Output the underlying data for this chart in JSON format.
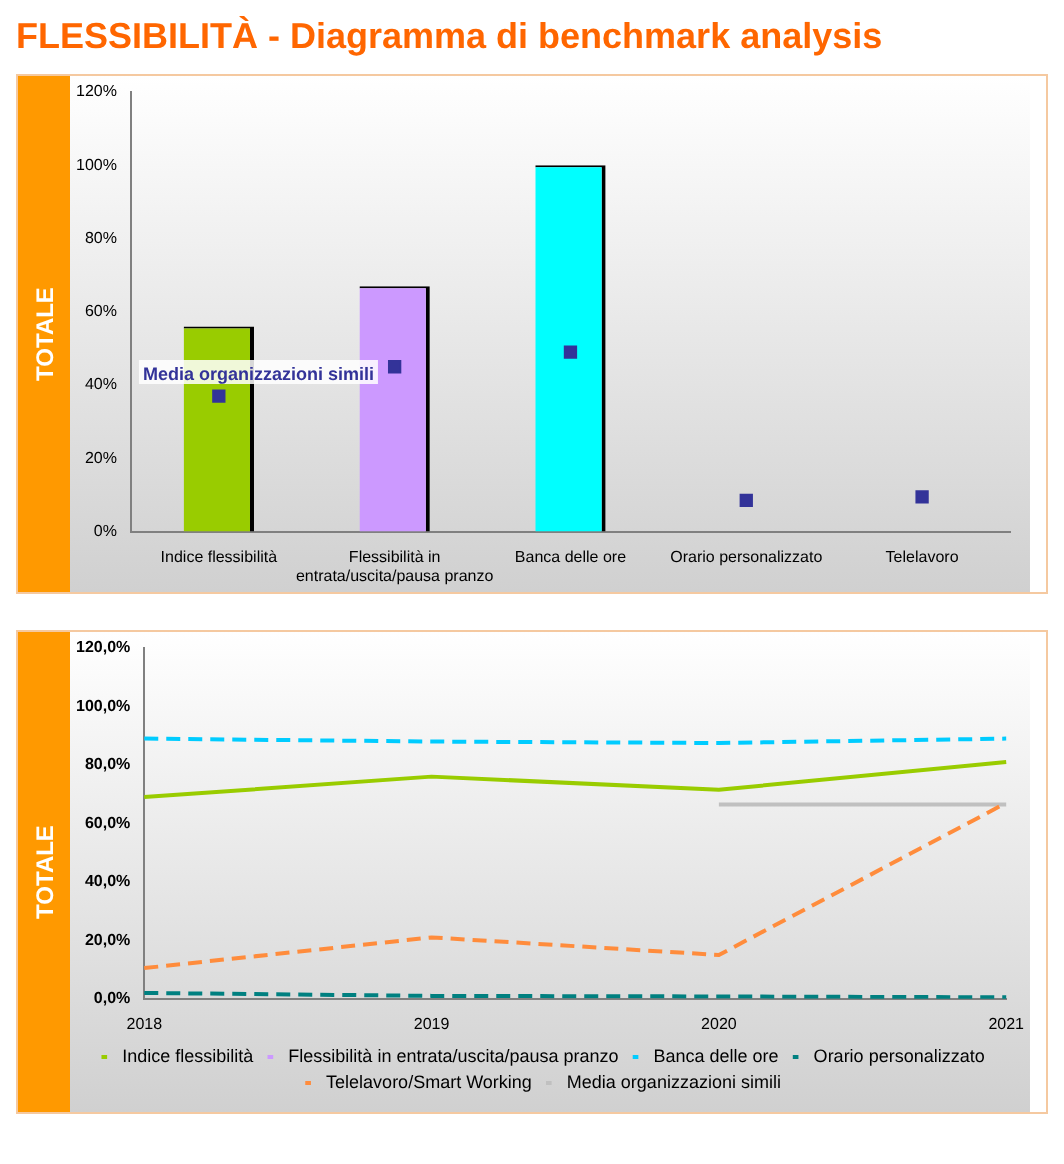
{
  "chart_data": [
    {
      "type": "bar",
      "title": "FLESSIBILITÀ - Diagramma di benchmark analysis",
      "ylabel": "TOTALE",
      "categories": [
        "Indice flessibilità",
        "Flessibilità in entrata/uscita/pausa pranzo",
        "Banca delle ore",
        "Orario personalizzato",
        "Telelavoro"
      ],
      "series": [
        {
          "colors": [
            "#99cc00",
            "#cc99ff",
            "#00ffff",
            "#99cc00",
            "#99cc00"
          ],
          "values": [
            56,
            67,
            100,
            0,
            0
          ]
        },
        {
          "type": "scatter",
          "name": "Media organizzazioni simili",
          "color": "#333399",
          "x": [
            "Indice flessibilità",
            "Flessibilità in entrata/uscita/pausa pranzo",
            "Banca delle ore",
            "Orario personalizzato",
            "Telelavoro"
          ],
          "values": [
            37,
            45,
            49,
            8.5,
            9.5
          ]
        }
      ],
      "ylim": [
        0,
        120
      ],
      "yticks": [
        {
          "value": 0,
          "label": "0%"
        },
        {
          "value": 20,
          "label": "20%"
        },
        {
          "value": 40,
          "label": "40%"
        },
        {
          "value": 60,
          "label": "60%"
        },
        {
          "value": 80,
          "label": "80%"
        },
        {
          "value": 100,
          "label": "100%"
        },
        {
          "value": 120,
          "label": "120%"
        }
      ]
    },
    {
      "type": "line",
      "ylabel": "TOTALE",
      "categories": [
        "2018",
        "2019",
        "2020",
        "2021"
      ],
      "series": [
        {
          "name": "Indice flessibilità",
          "color": "#99cc00",
          "line_style": "solid",
          "values": [
            69,
            76,
            71.5,
            81
          ]
        },
        {
          "name": "Flessibilità in entrata/uscita/pausa pranzo",
          "color": "#cc99ff",
          "line_style": "dashed",
          "values": [
            null,
            null,
            null,
            null
          ]
        },
        {
          "name": "Banca delle ore",
          "color": "#00ccff",
          "line_style": "dashed",
          "values": [
            89,
            88,
            87.5,
            89
          ]
        },
        {
          "name": "Orario personalizzato",
          "color": "#008080",
          "line_style": "dashed",
          "values": [
            2,
            1,
            0.8,
            0.5
          ]
        },
        {
          "name": "Telelavoro/Smart Working",
          "color": "#ff8c3c",
          "line_style": "dashed",
          "values": [
            10.5,
            21,
            15,
            67
          ]
        },
        {
          "name": "Media organizzazioni simili",
          "color": "#c0c0c0",
          "line_style": "solid",
          "values": [
            null,
            null,
            66.5,
            66.5
          ]
        }
      ],
      "ylim": [
        0,
        120
      ],
      "yticks": [
        {
          "value": 0,
          "label": "0,0%"
        },
        {
          "value": 20,
          "label": "20,0%"
        },
        {
          "value": 40,
          "label": "40,0%"
        },
        {
          "value": 60,
          "label": "60,0%"
        },
        {
          "value": 80,
          "label": "80,0%"
        },
        {
          "value": 100,
          "label": "100,0%"
        },
        {
          "value": 120,
          "label": "120,0%"
        }
      ],
      "legend": "bottom",
      "marker": "none"
    }
  ]
}
